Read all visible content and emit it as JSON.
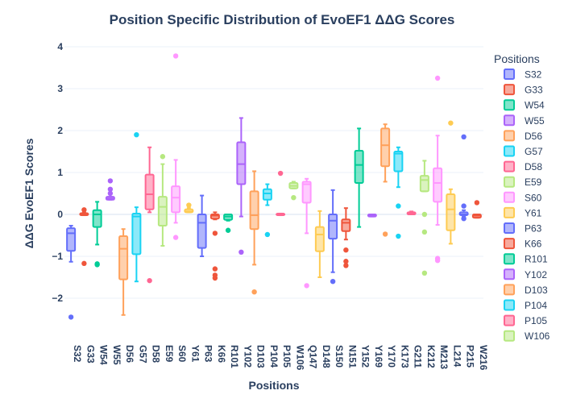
{
  "chart_data": {
    "type": "box",
    "title": "Position Specific Distribution of EvoEF1 ΔΔG Scores",
    "xlabel": "Positions",
    "ylabel": "ΔΔG EvoEF1 Scores",
    "ylim": [
      -2.6,
      4.3
    ],
    "yticks": [
      4,
      3,
      2,
      1,
      0,
      -1,
      -2
    ],
    "yticklabels": [
      "4",
      "3",
      "2",
      "1",
      "0",
      "−1",
      "−2"
    ],
    "grid": true,
    "legend_title": "Positions",
    "legend_placement": "right",
    "categories": [
      "S32",
      "G33",
      "W54",
      "W55",
      "D56",
      "G57",
      "D58",
      "E59",
      "S60",
      "Y61",
      "P63",
      "K66",
      "R101",
      "Y102",
      "D103",
      "P104",
      "P105",
      "W106",
      "Q147",
      "D148",
      "S150",
      "N151",
      "Y152",
      "Y169",
      "Y170",
      "K173",
      "G211",
      "K212",
      "M213",
      "L214",
      "P215",
      "W216"
    ],
    "colors": [
      "#636efa",
      "#EF553B",
      "#00cc96",
      "#ab63fa",
      "#FFA15A",
      "#19d3f3",
      "#FF6692",
      "#B6E880",
      "#FF97FF",
      "#FECB52"
    ],
    "legend_items": [
      "S32",
      "G33",
      "W54",
      "W55",
      "D56",
      "G57",
      "D58",
      "E59",
      "S60",
      "Y61",
      "P63",
      "K66",
      "R101",
      "Y102",
      "D103",
      "P104",
      "P105",
      "W106"
    ],
    "series": [
      {
        "name": "S32",
        "q1": -0.87,
        "median": -0.45,
        "q3": -0.33,
        "lower": -1.13,
        "upper": -0.27,
        "outliers": [
          -2.45
        ]
      },
      {
        "name": "G33",
        "q1": -0.02,
        "median": 0.0,
        "q3": 0.03,
        "lower": -0.02,
        "upper": 0.05,
        "outliers": [
          0.11,
          -1.17
        ]
      },
      {
        "name": "W54",
        "q1": -0.3,
        "median": 0.0,
        "q3": 0.1,
        "lower": -0.72,
        "upper": 0.3,
        "outliers": [
          -1.18,
          -1.2
        ]
      },
      {
        "name": "W55",
        "q1": 0.35,
        "median": 0.38,
        "q3": 0.42,
        "lower": 0.35,
        "upper": 0.42,
        "outliers": [
          0.8,
          0.6,
          0.5
        ]
      },
      {
        "name": "D56",
        "q1": -1.55,
        "median": -0.82,
        "q3": -0.52,
        "lower": -2.4,
        "upper": -0.35,
        "outliers": []
      },
      {
        "name": "G57",
        "q1": -0.95,
        "median": -0.05,
        "q3": 0.02,
        "lower": -1.6,
        "upper": 0.17,
        "outliers": [
          1.9
        ]
      },
      {
        "name": "D58",
        "q1": 0.12,
        "median": 0.48,
        "q3": 0.95,
        "lower": 0.05,
        "upper": 1.6,
        "outliers": [
          -1.58
        ]
      },
      {
        "name": "E59",
        "q1": -0.27,
        "median": 0.18,
        "q3": 0.42,
        "lower": -0.75,
        "upper": 1.2,
        "outliers": [
          1.38
        ]
      },
      {
        "name": "S60",
        "q1": 0.05,
        "median": 0.4,
        "q3": 0.67,
        "lower": -0.2,
        "upper": 1.3,
        "outliers": [
          3.78,
          -0.55
        ]
      },
      {
        "name": "Y61",
        "q1": 0.05,
        "median": 0.07,
        "q3": 0.12,
        "lower": 0.05,
        "upper": 0.15,
        "outliers": [
          0.22
        ]
      },
      {
        "name": "P63",
        "q1": -0.8,
        "median": -0.2,
        "q3": 0.0,
        "lower": -1.0,
        "upper": 0.45,
        "outliers": []
      },
      {
        "name": "K66",
        "q1": -0.1,
        "median": -0.03,
        "q3": 0.0,
        "lower": -0.12,
        "upper": 0.05,
        "outliers": [
          -0.45,
          -1.3,
          -1.45,
          -1.52
        ]
      },
      {
        "name": "R101",
        "q1": -0.13,
        "median": -0.05,
        "q3": 0.0,
        "lower": -0.15,
        "upper": 0.0,
        "outliers": [
          -0.38
        ]
      },
      {
        "name": "Y102",
        "q1": 0.72,
        "median": 1.2,
        "q3": 1.72,
        "lower": -0.05,
        "upper": 2.3,
        "outliers": [
          -0.9
        ]
      },
      {
        "name": "D103",
        "q1": -0.35,
        "median": -0.02,
        "q3": 0.55,
        "lower": -1.2,
        "upper": 1.03,
        "outliers": [
          -1.85
        ]
      },
      {
        "name": "P104",
        "q1": 0.35,
        "median": 0.5,
        "q3": 0.6,
        "lower": 0.22,
        "upper": 0.72,
        "outliers": [
          -0.48
        ]
      },
      {
        "name": "P105",
        "q1": -0.02,
        "median": 0.0,
        "q3": 0.02,
        "lower": -0.02,
        "upper": 0.02,
        "outliers": [
          0.98
        ]
      },
      {
        "name": "W106",
        "q1": 0.62,
        "median": 0.68,
        "q3": 0.75,
        "lower": 0.62,
        "upper": 0.78,
        "outliers": [
          0.4
        ]
      },
      {
        "name": "Q147",
        "q1": 0.28,
        "median": 0.72,
        "q3": 0.78,
        "lower": -0.45,
        "upper": 0.85,
        "outliers": [
          -1.7
        ]
      },
      {
        "name": "D148",
        "q1": -0.88,
        "median": -0.48,
        "q3": -0.3,
        "lower": -1.5,
        "upper": 0.08,
        "outliers": []
      },
      {
        "name": "S150",
        "q1": -0.58,
        "median": -0.15,
        "q3": 0.0,
        "lower": -1.38,
        "upper": 0.58,
        "outliers": [
          -1.6
        ]
      },
      {
        "name": "N151",
        "q1": -0.4,
        "median": -0.2,
        "q3": -0.12,
        "lower": -0.6,
        "upper": 0.15,
        "outliers": [
          -0.85,
          -1.12,
          -1.22
        ]
      },
      {
        "name": "Y152",
        "q1": 0.75,
        "median": 1.18,
        "q3": 1.52,
        "lower": -0.3,
        "upper": 2.05,
        "outliers": []
      },
      {
        "name": "Y169",
        "q1": -0.05,
        "median": -0.03,
        "q3": 0.0,
        "lower": -0.05,
        "upper": 0.0,
        "outliers": []
      },
      {
        "name": "Y170",
        "q1": 1.15,
        "median": 1.65,
        "q3": 2.05,
        "lower": 0.78,
        "upper": 2.15,
        "outliers": [
          -0.47
        ]
      },
      {
        "name": "K173",
        "q1": 1.03,
        "median": 1.45,
        "q3": 1.5,
        "lower": 0.65,
        "upper": 1.6,
        "outliers": [
          0.2,
          -0.52
        ]
      },
      {
        "name": "G211",
        "q1": 0.0,
        "median": 0.02,
        "q3": 0.05,
        "lower": 0.0,
        "upper": 0.07,
        "outliers": []
      },
      {
        "name": "K212",
        "q1": 0.55,
        "median": 0.82,
        "q3": 0.92,
        "lower": 0.55,
        "upper": 1.28,
        "outliers": [
          0.0,
          -0.42,
          -1.4
        ]
      },
      {
        "name": "M213",
        "q1": 0.3,
        "median": 0.75,
        "q3": 1.1,
        "lower": -0.25,
        "upper": 1.88,
        "outliers": [
          3.25,
          -1.05,
          -1.1
        ]
      },
      {
        "name": "L214",
        "q1": -0.38,
        "median": 0.12,
        "q3": 0.48,
        "lower": -0.7,
        "upper": 0.6,
        "outliers": [
          2.18
        ]
      },
      {
        "name": "P215",
        "q1": -0.02,
        "median": 0.0,
        "q3": 0.05,
        "lower": -0.05,
        "upper": 0.1,
        "outliers": [
          1.85,
          0.2,
          -0.1
        ]
      },
      {
        "name": "W216",
        "q1": -0.08,
        "median": -0.03,
        "q3": 0.0,
        "lower": -0.08,
        "upper": 0.0,
        "outliers": [
          0.28
        ]
      }
    ]
  }
}
